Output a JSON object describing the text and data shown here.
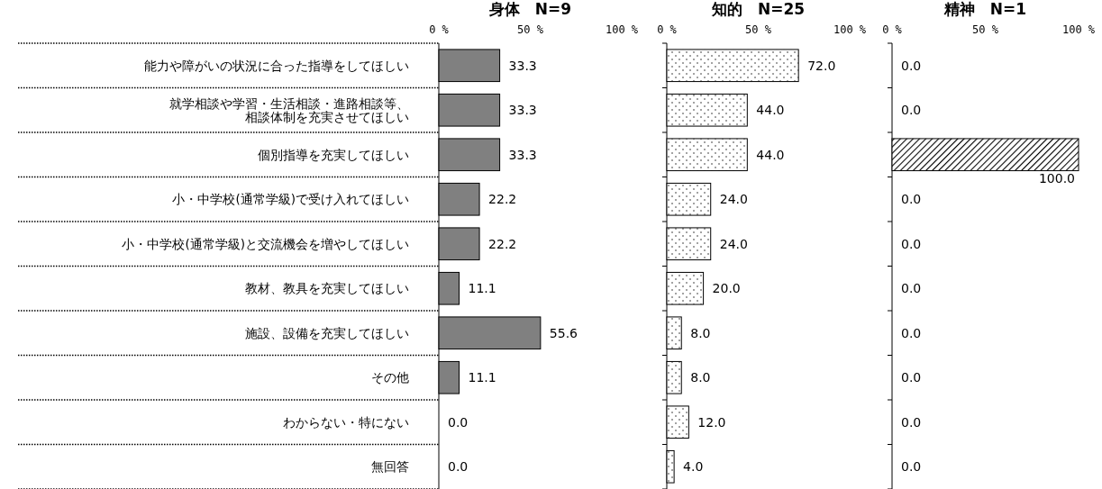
{
  "chart_data": [
    {
      "type": "bar",
      "orientation": "horizontal",
      "title": "身体　N=9",
      "categories": [
        "能力や障がいの状況に合った指導をしてほしい",
        "就学相談や学習・生活相談・進路相談等、相談体制を充実させてほしい",
        "個別指導を充実してほしい",
        "小・中学校(通常学級)で受け入れてほしい",
        "小・中学校(通常学級)と交流機会を増やしてほしい",
        "教材、教具を充実してほしい",
        "施設、設備を充実してほしい",
        "その他",
        "わからない・特にない",
        "無回答"
      ],
      "values": [
        33.3,
        33.3,
        33.3,
        22.2,
        22.2,
        11.1,
        55.6,
        11.1,
        0.0,
        0.0
      ],
      "color": "#808080",
      "value_labels": [
        "33.3",
        "33.3",
        "33.3",
        "22.2",
        "22.2",
        "11.1",
        "55.6",
        "11.1",
        "0.0",
        "0.0"
      ],
      "xlim": [
        0,
        100
      ],
      "xticks": [
        {
          "value": 0,
          "label": "0 %"
        },
        {
          "value": 50,
          "label": "50 %"
        },
        {
          "value": 100,
          "label": "100 %"
        }
      ]
    },
    {
      "type": "bar",
      "orientation": "horizontal",
      "title": "知的　N=25",
      "categories": [
        null,
        null,
        null,
        null,
        null,
        null,
        null,
        null,
        null,
        null
      ],
      "values": [
        72.0,
        44.0,
        44.0,
        24.0,
        24.0,
        20.0,
        8.0,
        8.0,
        12.0,
        4.0
      ],
      "color": "#000000",
      "value_labels": [
        "72.0",
        "44.0",
        "44.0",
        "24.0",
        "24.0",
        "20.0",
        "8.0",
        "8.0",
        "12.0",
        "4.0"
      ],
      "xlim": [
        0,
        100
      ],
      "xticks": [
        {
          "value": 0,
          "label": "0 %"
        },
        {
          "value": 50,
          "label": "50 %"
        },
        {
          "value": 100,
          "label": "100 %"
        }
      ],
      "tick_labels": "x"
    },
    {
      "type": "bar",
      "orientation": "horizontal",
      "title": "精神　N=1",
      "categories": [
        null,
        null,
        null,
        null,
        null,
        null,
        null,
        null,
        null,
        null
      ],
      "values": [
        0.0,
        0.0,
        100.0,
        0.0,
        0.0,
        0.0,
        0.0,
        0.0,
        0.0,
        0.0
      ],
      "color": "#000000",
      "value_labels": [
        "0.0",
        "0.0",
        "100.0",
        "0.0",
        "0.0",
        "0.0",
        "0.0",
        "0.0",
        "0.0",
        "0.0"
      ],
      "xlim": [
        0,
        100
      ],
      "xticks": [
        {
          "value": 0,
          "label": "0 %"
        },
        {
          "value": 50,
          "label": "50 %"
        },
        {
          "value": 100,
          "label": "100 %"
        }
      ],
      "tick_labels": "x"
    }
  ]
}
